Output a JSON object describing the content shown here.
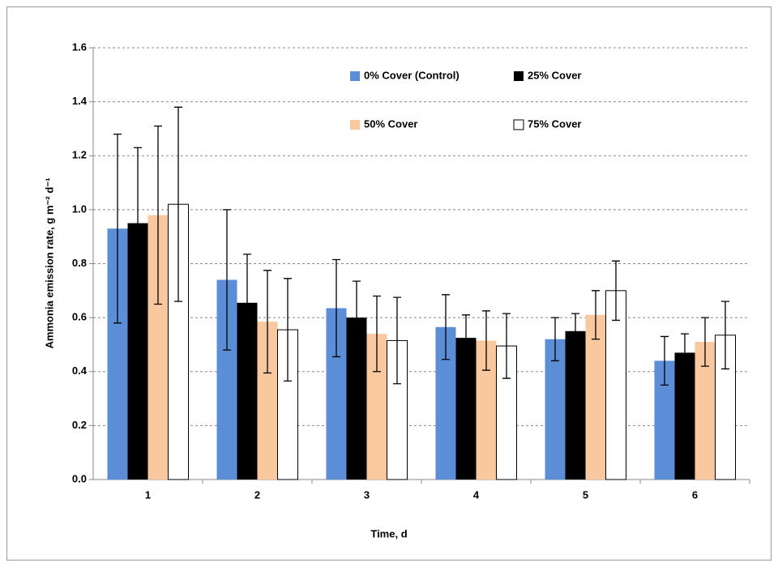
{
  "chart_data": {
    "type": "bar",
    "x_label": "Time, d",
    "y_label": "Ammonia emission rate, g m⁻² d⁻¹",
    "categories": [
      "1",
      "2",
      "3",
      "4",
      "5",
      "6"
    ],
    "series": [
      {
        "name": "0% Cover (Control)",
        "color": "#5b8ed6",
        "values": [
          0.93,
          0.74,
          0.635,
          0.565,
          0.52,
          0.44
        ],
        "errors": [
          0.35,
          0.26,
          0.18,
          0.12,
          0.08,
          0.09
        ]
      },
      {
        "name": "25% Cover",
        "color": "#000000",
        "values": [
          0.95,
          0.655,
          0.6,
          0.525,
          0.55,
          0.47
        ],
        "errors": [
          0.28,
          0.18,
          0.135,
          0.085,
          0.065,
          0.07
        ]
      },
      {
        "name": "50% Cover",
        "color": "#fac89f",
        "values": [
          0.98,
          0.585,
          0.54,
          0.515,
          0.61,
          0.51
        ],
        "errors": [
          0.33,
          0.19,
          0.14,
          0.11,
          0.09,
          0.09
        ]
      },
      {
        "name": "75% Cover",
        "color": "#ffffff",
        "values": [
          1.02,
          0.555,
          0.515,
          0.495,
          0.7,
          0.535
        ],
        "errors": [
          0.36,
          0.19,
          0.16,
          0.12,
          0.11,
          0.125
        ]
      }
    ],
    "ylim": [
      0,
      1.6
    ],
    "yticks": [
      {
        "value": 0,
        "label": "0.0"
      },
      {
        "value": 0.2,
        "label": "0.2"
      },
      {
        "value": 0.4,
        "label": "0.4"
      },
      {
        "value": 0.6,
        "label": "0.6"
      },
      {
        "value": 0.8,
        "label": "0.8"
      },
      {
        "value": 1.0,
        "label": "1.0"
      },
      {
        "value": 1.2,
        "label": "1.2"
      },
      {
        "value": 1.4,
        "label": "1.4"
      },
      {
        "value": 1.6,
        "label": "1.6"
      }
    ],
    "grid": true
  }
}
